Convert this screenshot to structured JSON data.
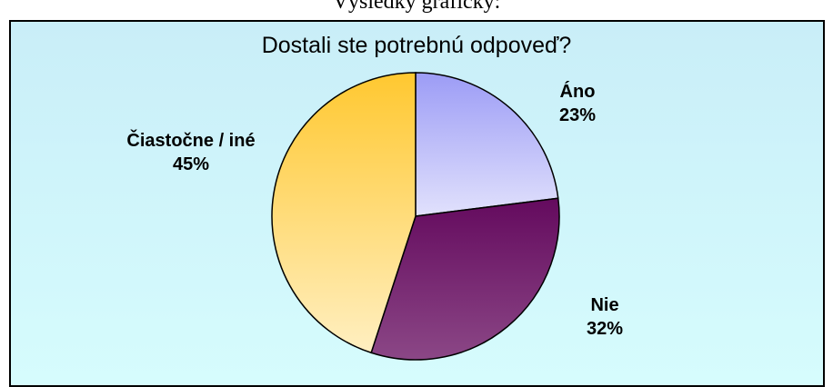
{
  "heading": "Výsledky graficky:",
  "chart_data": {
    "type": "pie",
    "title": "Dostali ste potrebnú odpoveď?",
    "categories": [
      "Áno",
      "Nie",
      "Čiastočne / iné"
    ],
    "values": [
      23,
      32,
      45
    ],
    "value_labels": [
      "23%",
      "32%",
      "45%"
    ],
    "colors": [
      "#9c9cf6",
      "#640a5e",
      "#ffc830"
    ]
  }
}
